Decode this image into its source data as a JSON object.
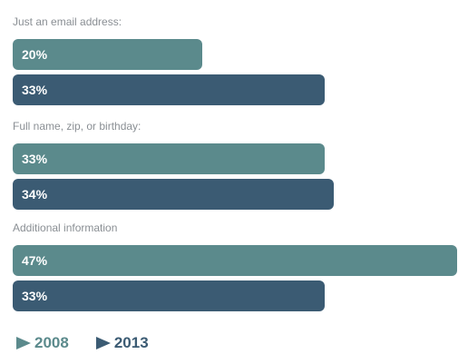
{
  "chart_data": {
    "type": "bar",
    "orientation": "horizontal",
    "categories": [
      "Just an email address:",
      "Full name, zip, or birthday:",
      "Additional information"
    ],
    "series": [
      {
        "name": "2008",
        "color": "#5b8a8c",
        "values": [
          20,
          33,
          47
        ],
        "labels": [
          "20%",
          "33%",
          "47%"
        ]
      },
      {
        "name": "2013",
        "color": "#3b5b73",
        "values": [
          33,
          34,
          33
        ],
        "labels": [
          "33%",
          "34%",
          "33%"
        ]
      }
    ],
    "xlim": [
      0,
      47
    ],
    "title": "",
    "xlabel": "",
    "ylabel": "",
    "grid": false,
    "legend_position": "bottom-left"
  }
}
